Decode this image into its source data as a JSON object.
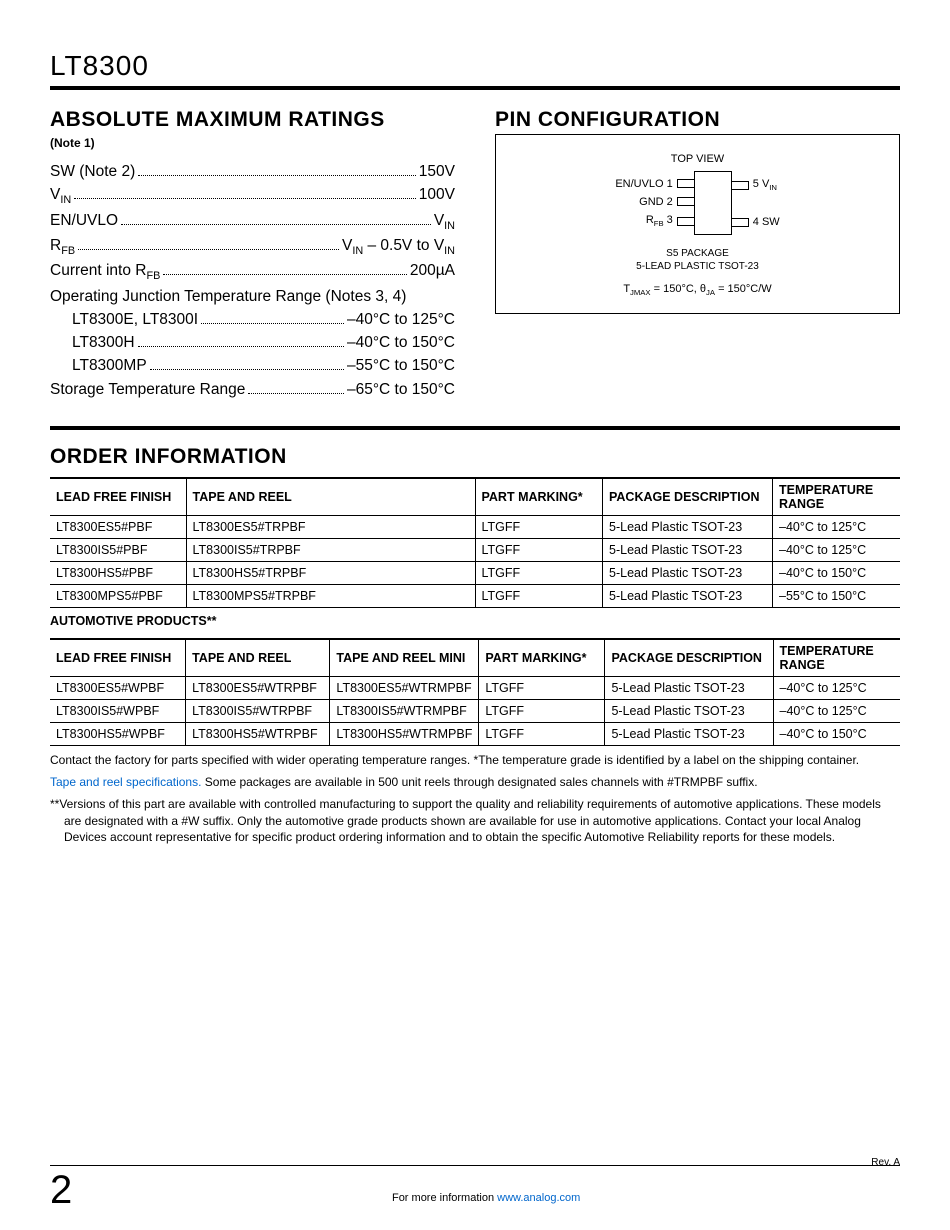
{
  "part_number": "LT8300",
  "abs_max": {
    "heading": "ABSOLUTE MAXIMUM RATINGS",
    "note": "(Note 1)",
    "lines": [
      {
        "label": "SW (Note 2)",
        "value": "150V",
        "indent": false
      },
      {
        "label": "V<sub>IN</sub>",
        "value": "100V",
        "indent": false
      },
      {
        "label": "EN/UVLO",
        "value": "V<sub>IN</sub>",
        "indent": false
      },
      {
        "label": "R<sub>FB</sub>",
        "value": "V<sub>IN</sub> – 0.5V to V<sub>IN</sub>",
        "indent": false
      },
      {
        "label": "Current into R<sub>FB</sub>",
        "value": "200µA",
        "indent": false
      },
      {
        "label": "Operating Junction Temperature Range (Notes 3, 4)",
        "value": "",
        "indent": false,
        "nodots": true
      },
      {
        "label": "LT8300E, LT8300I",
        "value": "–40°C to 125°C",
        "indent": true
      },
      {
        "label": "LT8300H",
        "value": "–40°C to 150°C",
        "indent": true
      },
      {
        "label": "LT8300MP",
        "value": "–55°C to 150°C",
        "indent": true
      },
      {
        "label": "Storage Temperature Range",
        "value": "–65°C to 150°C",
        "indent": false
      }
    ]
  },
  "pin_config": {
    "heading": "PIN CONFIGURATION",
    "top_view": "TOP VIEW",
    "left_pins": [
      {
        "num": "1",
        "name": "EN/UVLO"
      },
      {
        "num": "2",
        "name": "GND"
      },
      {
        "num": "3",
        "name": "R<sub>FB</sub>"
      }
    ],
    "right_pins": [
      {
        "num": "5",
        "name": "V<sub>IN</sub>"
      },
      {
        "num": "4",
        "name": "SW"
      }
    ],
    "pkg_name": "S5 PACKAGE",
    "pkg_desc": "5-LEAD PLASTIC TSOT-23",
    "thermal": "T<sub>JMAX</sub> = 150°C, θ<sub>JA</sub> = 150°C/W"
  },
  "order_info": {
    "heading": "ORDER INFORMATION",
    "table1": {
      "headers": [
        "LEAD FREE FINISH",
        "TAPE AND REEL",
        "PART MARKING*",
        "PACKAGE DESCRIPTION",
        "TEMPERATURE RANGE"
      ],
      "rows": [
        [
          "LT8300ES5#PBF",
          "LT8300ES5#TRPBF",
          "LTGFF",
          "5-Lead Plastic TSOT-23",
          "–40°C to 125°C"
        ],
        [
          "LT8300IS5#PBF",
          "LT8300IS5#TRPBF",
          "LTGFF",
          "5-Lead Plastic TSOT-23",
          "–40°C to 125°C"
        ],
        [
          "LT8300HS5#PBF",
          "LT8300HS5#TRPBF",
          "LTGFF",
          "5-Lead Plastic TSOT-23",
          "–40°C to 150°C"
        ],
        [
          "LT8300MPS5#PBF",
          "LT8300MPS5#TRPBF",
          "LTGFF",
          "5-Lead Plastic TSOT-23",
          "–55°C to 150°C"
        ]
      ],
      "col_widths": [
        "16%",
        "34%",
        "15%",
        "20%",
        "15%"
      ]
    },
    "auto_heading": "AUTOMOTIVE PRODUCTS**",
    "table2": {
      "headers": [
        "LEAD FREE FINISH",
        "TAPE AND REEL",
        "TAPE AND REEL MINI",
        "PART MARKING*",
        "PACKAGE DESCRIPTION",
        "TEMPERATURE RANGE"
      ],
      "rows": [
        [
          "LT8300ES5#WPBF",
          "LT8300ES5#WTRPBF",
          "LT8300ES5#WTRMPBF",
          "LTGFF",
          "5-Lead Plastic TSOT-23",
          "–40°C to 125°C"
        ],
        [
          "LT8300IS5#WPBF",
          "LT8300IS5#WTRPBF",
          "LT8300IS5#WTRMPBF",
          "LTGFF",
          "5-Lead Plastic TSOT-23",
          "–40°C to 125°C"
        ],
        [
          "LT8300HS5#WPBF",
          "LT8300HS5#WTRPBF",
          "LT8300HS5#WTRMPBF",
          "LTGFF",
          "5-Lead Plastic TSOT-23",
          "–40°C to 150°C"
        ]
      ],
      "col_widths": [
        "16%",
        "17%",
        "17%",
        "15%",
        "20%",
        "15%"
      ]
    },
    "footnotes": [
      {
        "text": "Contact the factory for parts specified with wider operating temperature ranges. *The temperature grade is identified by a label on the shipping container.",
        "link": "",
        "indented": false
      },
      {
        "text": " Some packages are available in 500 unit reels through designated sales channels with #TRMPBF suffix.",
        "link": "Tape and reel specifications.",
        "indented": false
      },
      {
        "text": "**Versions of this part are available with controlled manufacturing to support the quality and reliability requirements of automotive applications. These models are designated with a #W suffix. Only the automotive grade products shown are available for use in automotive applications. Contact your local Analog Devices account representative for specific product ordering information and to obtain the specific Automotive Reliability reports for these models.",
        "link": "",
        "indented": true
      }
    ]
  },
  "footer": {
    "rev": "Rev. A",
    "page": "2",
    "more_info": "For more information ",
    "link": "www.analog.com"
  }
}
